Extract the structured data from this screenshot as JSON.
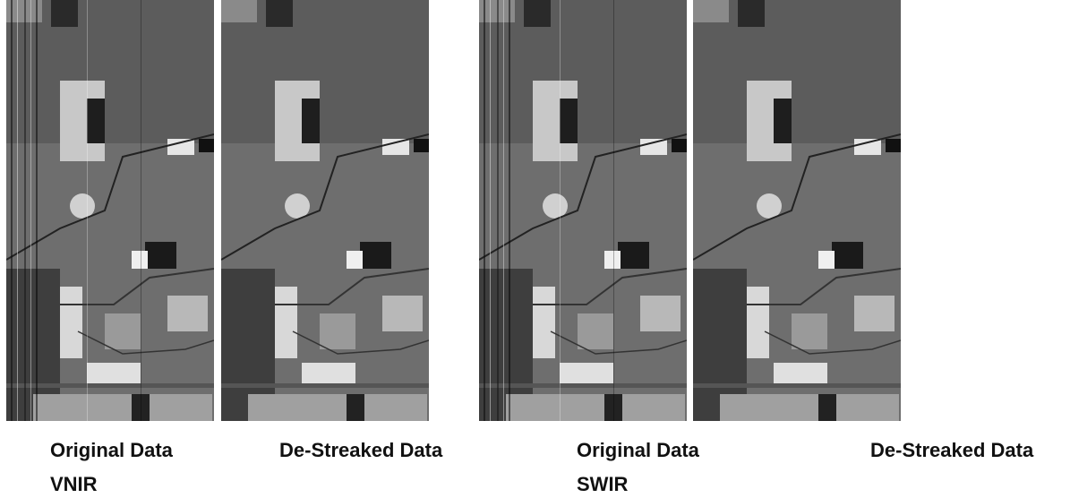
{
  "panels": [
    {
      "caption": "Original Data"
    },
    {
      "caption": "De-Streaked Data"
    },
    {
      "caption": "Original Data"
    },
    {
      "caption": "De-Streaked Data"
    }
  ],
  "groups": [
    {
      "label": "VNIR"
    },
    {
      "label": "SWIR"
    }
  ]
}
